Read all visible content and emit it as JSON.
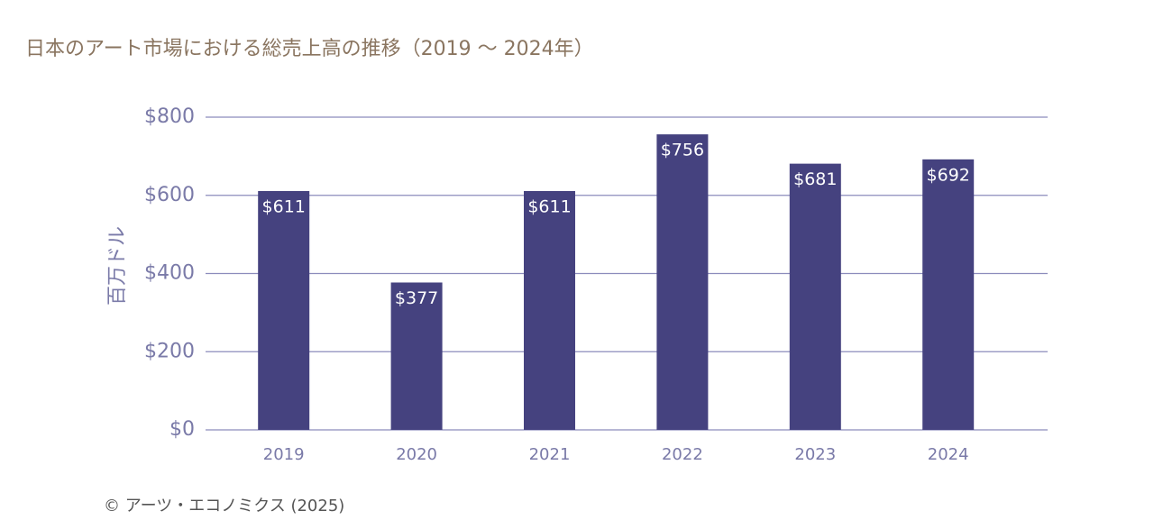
{
  "chart_data": {
    "type": "bar",
    "title": "日本のアート市場における総売上高の推移（2019 ～ 2024年）",
    "y_label": "百万ドル",
    "source": "© アーツ・エコノミクス (2025)",
    "categories": [
      "2019",
      "2020",
      "2021",
      "2022",
      "2023",
      "2024"
    ],
    "values": [
      611,
      377,
      611,
      756,
      681,
      692
    ],
    "value_labels": [
      "$611",
      "$377",
      "$611",
      "$756",
      "$681",
      "$692"
    ],
    "color": "#45427f",
    "ylim": [
      0,
      800
    ],
    "yticks": [
      {
        "value": 0,
        "label": "$0"
      },
      {
        "value": 200,
        "label": "$200"
      },
      {
        "value": 400,
        "label": "$400"
      },
      {
        "value": 600,
        "label": "$600"
      },
      {
        "value": 800,
        "label": "$800"
      }
    ],
    "grid": true
  }
}
